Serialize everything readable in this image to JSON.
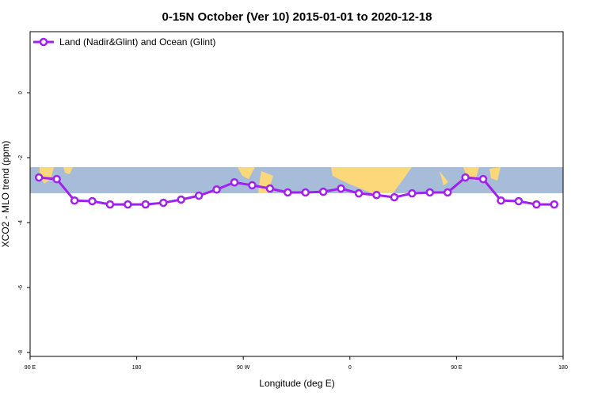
{
  "chart_data": {
    "type": "line",
    "title": "0-15N October (Ver 10)   2015-01-01 to 2020-12-18",
    "x_label": "Longitude (deg E)",
    "y_label": "XCO2 - MLO trend (ppm)",
    "x": [
      97.5,
      112.5,
      127.5,
      142.5,
      157.5,
      172.5,
      187.5,
      202.5,
      217.5,
      232.5,
      247.5,
      262.5,
      277.5,
      292.5,
      307.5,
      322.5,
      337.5,
      352.5,
      367.5,
      382.5,
      397.5,
      412.5,
      427.5,
      442.5,
      457.5,
      472.5,
      487.5,
      502.5,
      517.5,
      532.5
    ],
    "series": [
      {
        "name": "Land (Nadir&Glint) and Ocean (Glint)",
        "color": "#a020f0",
        "values": [
          -2.61,
          -2.66,
          -3.32,
          -3.34,
          -3.44,
          -3.44,
          -3.44,
          -3.39,
          -3.29,
          -3.17,
          -2.98,
          -2.76,
          -2.85,
          -2.95,
          -3.07,
          -3.07,
          -3.05,
          -2.95,
          -3.1,
          -3.15,
          -3.22,
          -3.1,
          -3.07,
          -3.07,
          -2.61,
          -2.66,
          -3.32,
          -3.34,
          -3.44,
          -3.44
        ]
      }
    ],
    "xlim": [
      90,
      540
    ],
    "xticks": [
      {
        "value": 90,
        "label": "90 E"
      },
      180,
      {
        "value": 270,
        "label": "90 W"
      },
      {
        "value": 360,
        "label": "0"
      },
      {
        "value": 450,
        "label": "90 E"
      },
      {
        "value": 540,
        "label": "180"
      }
    ],
    "ylim": [
      -8.12,
      1.88
    ],
    "yticks": [
      0,
      -2,
      -4,
      -6,
      -8
    ],
    "legend": "upper left"
  }
}
